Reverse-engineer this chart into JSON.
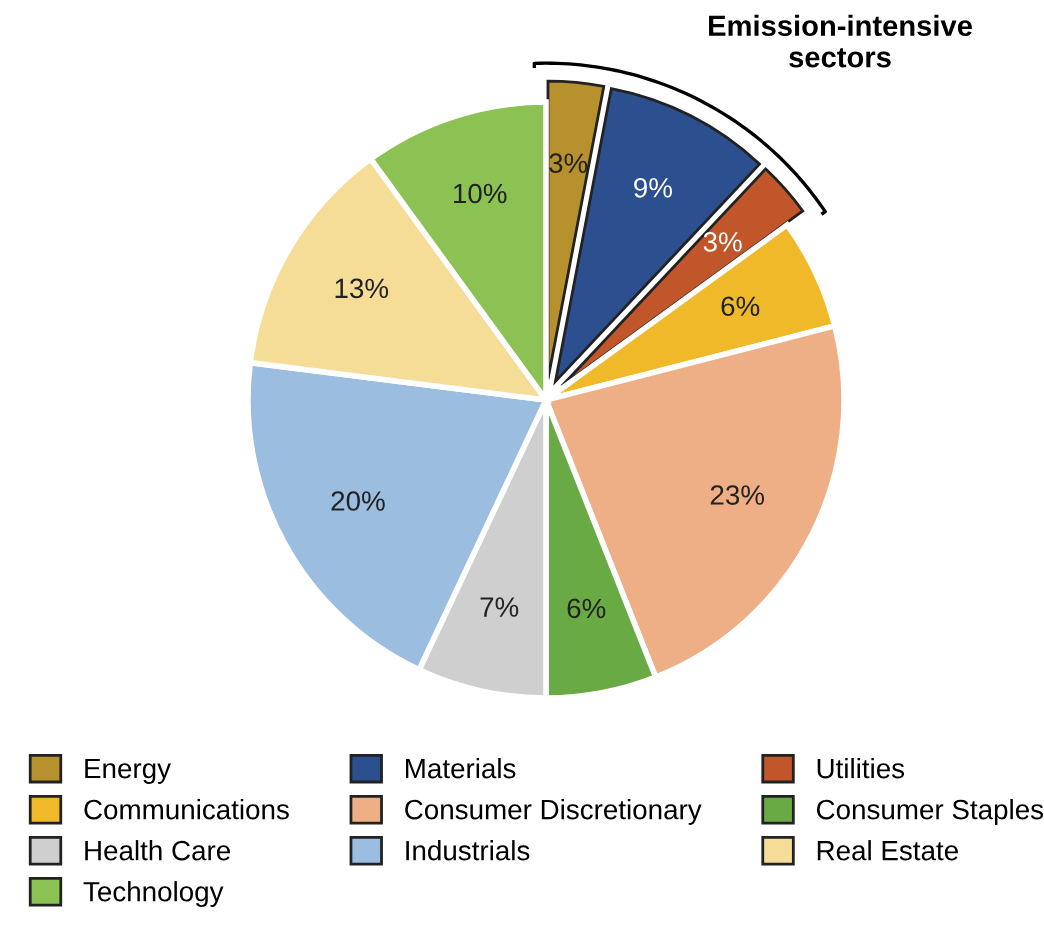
{
  "chart_data": {
    "type": "pie",
    "categories": [
      "Energy",
      "Materials",
      "Utilities",
      "Communications",
      "Consumer Discretionary",
      "Consumer Staples",
      "Health Care",
      "Industrials",
      "Real Estate",
      "Technology"
    ],
    "values": [
      3,
      9,
      3,
      6,
      23,
      6,
      7,
      20,
      13,
      10
    ],
    "value_labels": [
      "3%",
      "9%",
      "3%",
      "6%",
      "23%",
      "6%",
      "7%",
      "20%",
      "13%",
      "10%"
    ],
    "colors": [
      "#b8912f",
      "#2b4f8f",
      "#c0562a",
      "#f0b92a",
      "#efaf86",
      "#6aaa45",
      "#cfcfcf",
      "#9bbde0",
      "#f5dd98",
      "#8cc153"
    ],
    "annotations": [
      "Emission-intensive\nsectors"
    ],
    "legend": "bottom"
  }
}
